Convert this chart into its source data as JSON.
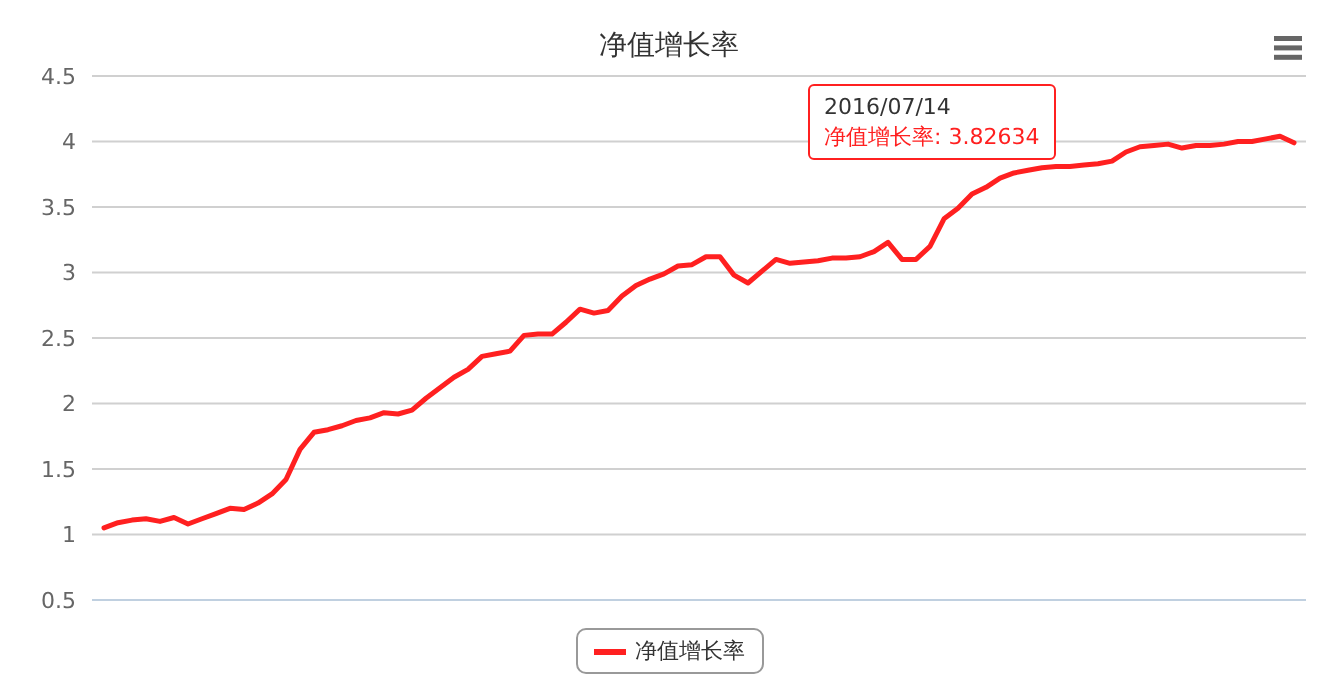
{
  "chart_data": {
    "type": "line",
    "title": "净值增长率",
    "categories": [
      null,
      null,
      null,
      null,
      null,
      null,
      null,
      null,
      null,
      null,
      null,
      null,
      null,
      null,
      null,
      null,
      null,
      null,
      null,
      null,
      null,
      null,
      null,
      null,
      null,
      null,
      null,
      null,
      null,
      null,
      null,
      null,
      null,
      null,
      null,
      null,
      null,
      null,
      null,
      null,
      null,
      null,
      null,
      null,
      null,
      null,
      null,
      null,
      null,
      null,
      null,
      null,
      null,
      null,
      null,
      null,
      null,
      null,
      null,
      null,
      null,
      null,
      null,
      null,
      null,
      null,
      null,
      null,
      null,
      null,
      null,
      null,
      null,
      null,
      null,
      null,
      null,
      null,
      null,
      null,
      null,
      null,
      null,
      null,
      null,
      null
    ],
    "series": [
      {
        "name": "净值增长率",
        "color": "#ff2020",
        "values": [
          1.05,
          1.09,
          1.11,
          1.12,
          1.1,
          1.13,
          1.08,
          1.12,
          1.16,
          1.2,
          1.19,
          1.24,
          1.31,
          1.42,
          1.65,
          1.78,
          1.8,
          1.83,
          1.87,
          1.89,
          1.93,
          1.92,
          1.95,
          2.04,
          2.12,
          2.2,
          2.26,
          2.36,
          2.38,
          2.4,
          2.52,
          2.53,
          2.53,
          2.62,
          2.72,
          2.69,
          2.71,
          2.82,
          2.9,
          2.95,
          2.99,
          3.05,
          3.06,
          3.12,
          3.12,
          2.98,
          2.92,
          3.01,
          3.1,
          3.07,
          3.08,
          3.09,
          3.11,
          3.11,
          3.12,
          3.16,
          3.23,
          3.1,
          3.1,
          3.2,
          3.41,
          3.49,
          3.6,
          3.65,
          3.72,
          3.76,
          3.78,
          3.8,
          3.81,
          3.81,
          3.82,
          3.83,
          3.85,
          3.92,
          3.96,
          3.97,
          3.98,
          3.95,
          3.97,
          3.97,
          3.98,
          4.0,
          4.0,
          4.02,
          4.04,
          3.99
        ]
      }
    ],
    "ylim": [
      0.5,
      4.5
    ],
    "yticks": [
      0.5,
      1,
      1.5,
      2,
      2.5,
      3,
      3.5,
      4,
      4.5
    ],
    "grid": "y",
    "legend": "bottom",
    "tick_labels": "y",
    "marker": "none",
    "line_style": "solid",
    "annotations": [
      "2016/07/14\n净值增长率: 3.82634"
    ]
  }
}
